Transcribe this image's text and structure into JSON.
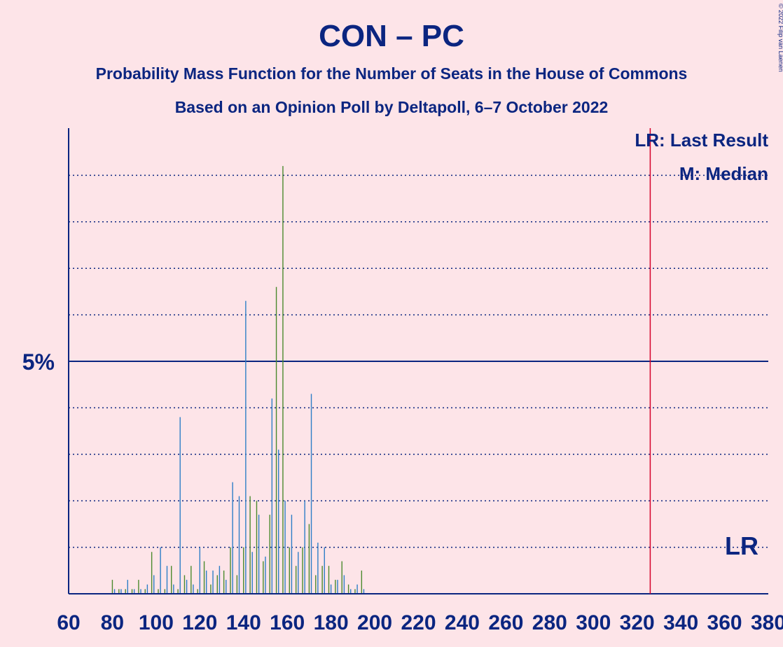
{
  "chart_data": {
    "type": "bar",
    "title": "CON – PC",
    "subtitle": "Probability Mass Function for the Number of Seats in the House of Commons",
    "subtitle2": "Based on an Opinion Poll by Deltapoll, 6–7 October 2022",
    "copyright": "© 2022 Filip van Laenen",
    "xlim": [
      60,
      380
    ],
    "ylim": [
      0,
      10
    ],
    "x_ticks": [
      60,
      80,
      100,
      120,
      140,
      160,
      180,
      200,
      220,
      240,
      260,
      280,
      300,
      320,
      340,
      360,
      380
    ],
    "y_tick_label": "5%",
    "y_tick_value": 5,
    "grid": "dotted every 1%",
    "last_result": 326,
    "last_result_color": "#d6002a",
    "legend": {
      "lr": "LR: Last Result",
      "m": "M: Median",
      "lr_marker": "LR"
    },
    "series": [
      {
        "name": "CON",
        "color": "#2d7ec7",
        "x": [
          81,
          84,
          87,
          90,
          93,
          96,
          99,
          102,
          105,
          108,
          111,
          114,
          117,
          120,
          123,
          126,
          129,
          132,
          135,
          138,
          141,
          144,
          147,
          150,
          153,
          156,
          159,
          162,
          165,
          168,
          171,
          174,
          177,
          180,
          183,
          186,
          189,
          192,
          195
        ],
        "values": [
          0.1,
          0.1,
          0.3,
          0.1,
          0.1,
          0.2,
          0.4,
          1.0,
          0.6,
          0.2,
          3.8,
          0.3,
          0.2,
          1.0,
          0.5,
          0.5,
          0.6,
          0.3,
          2.4,
          2.1,
          6.3,
          0.9,
          1.7,
          0.8,
          4.2,
          3.1,
          2.0,
          1.7,
          0.9,
          2.0,
          4.3,
          1.1,
          1.0,
          0.2,
          0.3,
          0.4,
          0.1,
          0.2,
          0.1
        ]
      },
      {
        "name": "PC",
        "color": "#4b8a2e",
        "x": [
          80,
          83,
          86,
          89,
          92,
          95,
          98,
          101,
          104,
          107,
          110,
          113,
          116,
          119,
          122,
          125,
          128,
          131,
          134,
          137,
          140,
          143,
          146,
          149,
          152,
          155,
          158,
          161,
          164,
          167,
          170,
          173,
          176,
          179,
          182,
          185,
          188,
          191,
          194
        ],
        "values": [
          0.3,
          0.1,
          0.1,
          0.1,
          0.3,
          0.1,
          0.9,
          0.1,
          0.1,
          0.6,
          0.1,
          0.4,
          0.6,
          0.1,
          0.7,
          0.2,
          0.4,
          0.5,
          1.0,
          0.4,
          1.0,
          2.1,
          2.0,
          0.7,
          1.7,
          6.6,
          9.2,
          1.0,
          0.6,
          1.0,
          1.5,
          0.4,
          0.6,
          0.6,
          0.3,
          0.7,
          0.2,
          0.1,
          0.5
        ]
      }
    ]
  }
}
